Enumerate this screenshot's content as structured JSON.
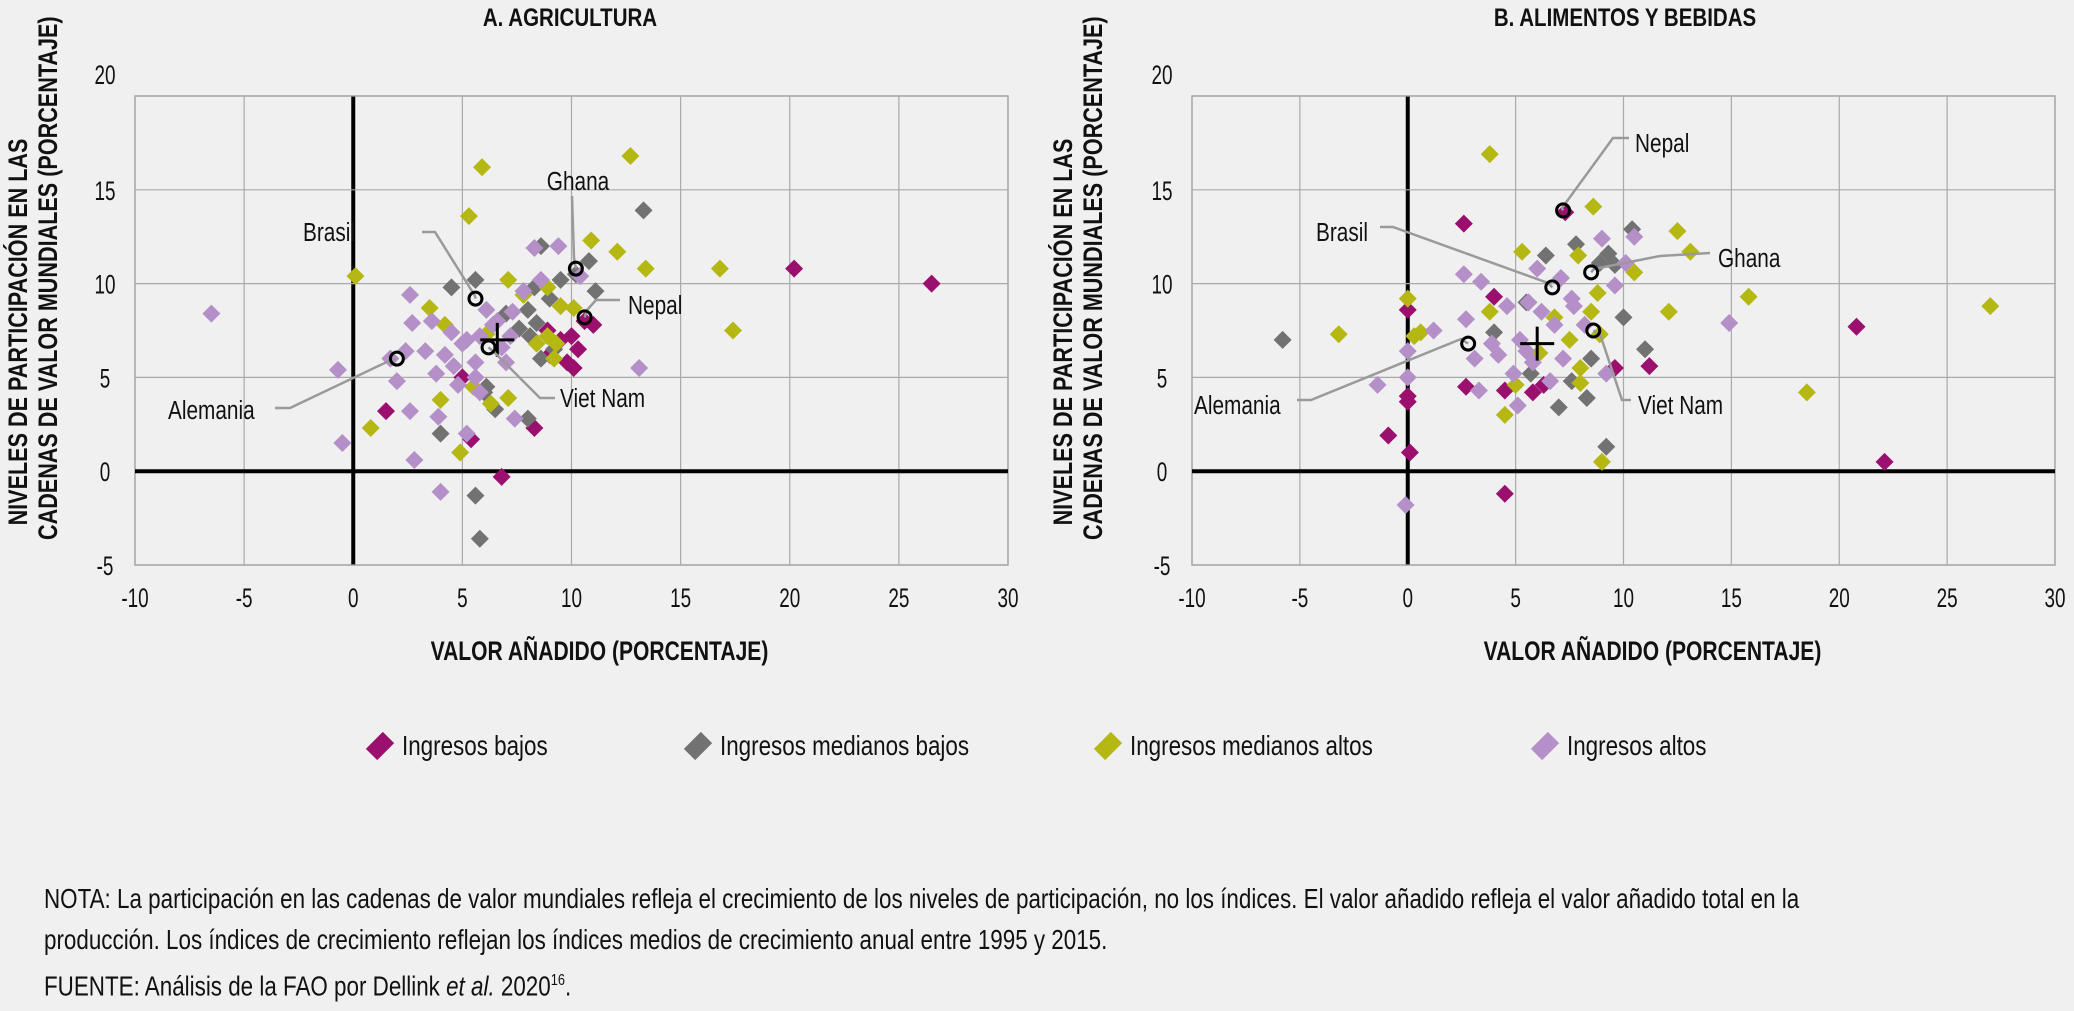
{
  "colors": {
    "ingresos_bajos": "#9b0f6f",
    "ingresos_medianos_bajos": "#727272",
    "ingresos_medianos_altos": "#b5b712",
    "ingresos_altos": "#b58fc8",
    "background": "#f0f0f0",
    "grid": "#a9a9a9",
    "leader": "#9a9a9a"
  },
  "legend": [
    {
      "key": "low",
      "label": "Ingresos bajos"
    },
    {
      "key": "lower_middle",
      "label": "Ingresos medianos bajos"
    },
    {
      "key": "upper_middle",
      "label": "Ingresos medianos altos"
    },
    {
      "key": "high",
      "label": "Ingresos altos"
    }
  ],
  "notes": {
    "line1": "NOTA: La participación en las cadenas de valor mundiales refleja el crecimiento de los niveles de participación, no los índices. El valor añadido refleja el valor añadido total en la",
    "line2": "producción. Los índices de crecimiento reflejan los índices medios de crecimiento anual entre 1995 y 2015.",
    "source_prefix": "FUENTE: Análisis de la FAO por Dellink ",
    "source_italic": "et al.",
    "source_suffix": " 2020",
    "source_sup": "16",
    "source_end": "."
  },
  "chart_data": [
    {
      "type": "scatter",
      "title": "A. AGRICULTURA",
      "xlabel": "VALOR AÑADIDO (PORCENTAJE)",
      "ylabel_line1": "NIVELES DE PARTICIPACIÓN EN LAS",
      "ylabel_line2": "CADENAS DE VALOR MUNDIALES (PORCENTAJE)",
      "xlim": [
        -10,
        30
      ],
      "ylim": [
        -5,
        20
      ],
      "xticks": [
        "-10",
        "-5",
        "0",
        "5",
        "10",
        "15",
        "20",
        "25",
        "30"
      ],
      "yticks": [
        "20",
        "15",
        "10",
        "5",
        "0",
        "-5"
      ],
      "grid": true,
      "mean_marker": [
        6.6,
        7.0
      ],
      "highlighted": [
        {
          "name": "Brasil",
          "x": 5.6,
          "y": 9.2
        },
        {
          "name": "Ghana",
          "x": 10.2,
          "y": 10.8
        },
        {
          "name": "Nepal",
          "x": 10.6,
          "y": 8.2
        },
        {
          "name": "Viet Nam",
          "x": 6.2,
          "y": 6.6
        },
        {
          "name": "Alemania",
          "x": 2.0,
          "y": 6.0
        }
      ],
      "series": [
        {
          "name": "Ingresos bajos",
          "key": "low",
          "points": [
            [
              20.2,
              10.8
            ],
            [
              26.5,
              10.0
            ],
            [
              10.6,
              8.0
            ],
            [
              11.0,
              7.8
            ],
            [
              10.0,
              7.2
            ],
            [
              10.3,
              6.5
            ],
            [
              9.8,
              5.8
            ],
            [
              10.1,
              5.5
            ],
            [
              8.9,
              7.5
            ],
            [
              9.5,
              7.0
            ],
            [
              1.5,
              3.2
            ],
            [
              8.3,
              2.3
            ],
            [
              5.4,
              1.7
            ],
            [
              6.8,
              -0.3
            ],
            [
              5.0,
              5.0
            ],
            [
              9.0,
              6.2
            ]
          ]
        },
        {
          "name": "Ingresos medianos bajos",
          "key": "lower_middle",
          "points": [
            [
              13.3,
              13.9
            ],
            [
              10.8,
              11.2
            ],
            [
              8.6,
              12.0
            ],
            [
              10.2,
              10.5
            ],
            [
              5.6,
              10.2
            ],
            [
              4.5,
              9.8
            ],
            [
              11.1,
              9.6
            ],
            [
              8.3,
              9.8
            ],
            [
              8.0,
              8.6
            ],
            [
              8.4,
              7.9
            ],
            [
              8.1,
              7.2
            ],
            [
              7.6,
              7.6
            ],
            [
              9.2,
              6.5
            ],
            [
              8.6,
              6.0
            ],
            [
              6.0,
              4.2
            ],
            [
              6.5,
              3.3
            ],
            [
              6.1,
              4.5
            ],
            [
              4.0,
              2.0
            ],
            [
              8.0,
              2.8
            ],
            [
              5.6,
              -1.3
            ],
            [
              5.8,
              -3.6
            ],
            [
              9.0,
              9.2
            ],
            [
              7.0,
              8.4
            ],
            [
              9.5,
              10.2
            ]
          ]
        },
        {
          "name": "Ingresos medianos altos",
          "key": "upper_middle",
          "points": [
            [
              12.7,
              16.8
            ],
            [
              5.9,
              16.2
            ],
            [
              5.3,
              13.6
            ],
            [
              10.9,
              12.3
            ],
            [
              12.1,
              11.7
            ],
            [
              13.4,
              10.8
            ],
            [
              16.8,
              10.8
            ],
            [
              17.4,
              7.5
            ],
            [
              0.1,
              10.4
            ],
            [
              7.1,
              10.2
            ],
            [
              8.9,
              9.8
            ],
            [
              9.5,
              8.8
            ],
            [
              3.5,
              8.7
            ],
            [
              4.2,
              7.8
            ],
            [
              6.1,
              7.3
            ],
            [
              8.4,
              6.8
            ],
            [
              9.2,
              6.0
            ],
            [
              5.5,
              4.5
            ],
            [
              6.3,
              3.6
            ],
            [
              7.1,
              3.9
            ],
            [
              4.9,
              1.0
            ],
            [
              0.8,
              2.3
            ],
            [
              8.9,
              7.2
            ],
            [
              10.1,
              8.7
            ],
            [
              9.3,
              6.8
            ],
            [
              4.0,
              3.8
            ],
            [
              7.8,
              9.4
            ]
          ]
        },
        {
          "name": "Ingresos altos",
          "key": "high",
          "points": [
            [
              -6.5,
              8.4
            ],
            [
              -0.7,
              5.4
            ],
            [
              -0.5,
              1.5
            ],
            [
              13.1,
              5.5
            ],
            [
              2.6,
              9.4
            ],
            [
              2.7,
              7.9
            ],
            [
              3.6,
              8.0
            ],
            [
              1.7,
              6.0
            ],
            [
              2.0,
              4.8
            ],
            [
              2.6,
              3.2
            ],
            [
              2.8,
              0.6
            ],
            [
              3.9,
              2.9
            ],
            [
              4.0,
              -1.1
            ],
            [
              5.2,
              2.0
            ],
            [
              7.4,
              2.8
            ],
            [
              4.8,
              4.6
            ],
            [
              5.6,
              5.0
            ],
            [
              4.2,
              6.2
            ],
            [
              5.0,
              6.8
            ],
            [
              5.8,
              7.2
            ],
            [
              6.4,
              7.8
            ],
            [
              4.5,
              7.4
            ],
            [
              6.8,
              6.6
            ],
            [
              5.6,
              5.8
            ],
            [
              7.3,
              8.5
            ],
            [
              7.8,
              9.6
            ],
            [
              8.3,
              11.9
            ],
            [
              9.4,
              12.0
            ],
            [
              10.4,
              10.4
            ],
            [
              6.1,
              8.6
            ],
            [
              3.3,
              6.4
            ],
            [
              4.6,
              5.6
            ],
            [
              5.8,
              4.2
            ],
            [
              7.0,
              5.8
            ],
            [
              3.8,
              5.2
            ],
            [
              8.6,
              10.2
            ],
            [
              6.6,
              8.0
            ],
            [
              2.4,
              6.4
            ],
            [
              7.2,
              7.2
            ],
            [
              5.2,
              7.0
            ]
          ]
        }
      ]
    },
    {
      "type": "scatter",
      "title": "B. ALIMENTOS Y BEBIDAS",
      "xlabel": "VALOR AÑADIDO (PORCENTAJE)",
      "ylabel_line1": "NIVELES DE PARTICIPACIÓN EN LAS",
      "ylabel_line2": "CADENAS DE VALOR MUNDIALES (PORCENTAJE)",
      "xlim": [
        -10,
        30
      ],
      "ylim": [
        -5,
        20
      ],
      "xticks": [
        "-10",
        "-5",
        "0",
        "5",
        "10",
        "15",
        "20",
        "25",
        "30"
      ],
      "yticks": [
        "20",
        "15",
        "10",
        "5",
        "0",
        "-5"
      ],
      "grid": true,
      "mean_marker": [
        6.0,
        6.8
      ],
      "highlighted": [
        {
          "name": "Nepal",
          "x": 7.2,
          "y": 13.9
        },
        {
          "name": "Brasil",
          "x": 6.7,
          "y": 9.8
        },
        {
          "name": "Ghana",
          "x": 8.5,
          "y": 10.6
        },
        {
          "name": "Viet Nam",
          "x": 8.6,
          "y": 7.5
        },
        {
          "name": "Alemania",
          "x": 2.8,
          "y": 6.8
        }
      ],
      "series": [
        {
          "name": "Ingresos bajos",
          "key": "low",
          "points": [
            [
              2.6,
              13.2
            ],
            [
              7.3,
              13.8
            ],
            [
              20.8,
              7.7
            ],
            [
              22.1,
              0.5
            ],
            [
              11.2,
              5.6
            ],
            [
              0.0,
              8.6
            ],
            [
              0.0,
              4.0
            ],
            [
              0.0,
              3.7
            ],
            [
              -0.9,
              1.9
            ],
            [
              0.1,
              1.0
            ],
            [
              4.5,
              -1.2
            ],
            [
              4.5,
              4.3
            ],
            [
              6.3,
              4.6
            ],
            [
              2.7,
              4.5
            ],
            [
              9.6,
              5.5
            ],
            [
              4.0,
              9.3
            ],
            [
              5.8,
              4.2
            ]
          ]
        },
        {
          "name": "Ingresos medianos bajos",
          "key": "lower_middle",
          "points": [
            [
              -5.8,
              7.0
            ],
            [
              10.4,
              12.9
            ],
            [
              7.8,
              12.1
            ],
            [
              6.4,
              11.5
            ],
            [
              9.3,
              11.6
            ],
            [
              10.0,
              8.2
            ],
            [
              11.0,
              6.5
            ],
            [
              8.5,
              6.0
            ],
            [
              8.3,
              3.9
            ],
            [
              7.0,
              3.4
            ],
            [
              9.2,
              1.3
            ],
            [
              7.6,
              4.8
            ],
            [
              5.5,
              9.0
            ],
            [
              8.9,
              11.1
            ],
            [
              4.0,
              7.4
            ],
            [
              5.7,
              5.2
            ],
            [
              9.6,
              11.0
            ]
          ]
        },
        {
          "name": "Ingresos medianos altos",
          "key": "upper_middle",
          "points": [
            [
              3.8,
              16.9
            ],
            [
              8.6,
              14.1
            ],
            [
              12.5,
              12.8
            ],
            [
              13.1,
              11.7
            ],
            [
              15.8,
              9.3
            ],
            [
              27.0,
              8.8
            ],
            [
              18.5,
              4.2
            ],
            [
              12.1,
              8.5
            ],
            [
              0.0,
              9.2
            ],
            [
              -3.2,
              7.3
            ],
            [
              0.3,
              7.2
            ],
            [
              0.6,
              7.4
            ],
            [
              5.3,
              11.7
            ],
            [
              7.9,
              11.5
            ],
            [
              10.5,
              10.6
            ],
            [
              8.8,
              9.5
            ],
            [
              8.5,
              8.5
            ],
            [
              4.5,
              3.0
            ],
            [
              5.0,
              4.6
            ],
            [
              8.0,
              4.7
            ],
            [
              9.0,
              0.5
            ],
            [
              8.9,
              7.3
            ],
            [
              6.1,
              6.3
            ],
            [
              7.5,
              7.0
            ],
            [
              3.8,
              8.5
            ],
            [
              8.0,
              5.5
            ],
            [
              6.8,
              8.2
            ]
          ]
        },
        {
          "name": "Ingresos altos",
          "key": "high",
          "points": [
            [
              14.9,
              7.9
            ],
            [
              -1.4,
              4.6
            ],
            [
              1.2,
              7.5
            ],
            [
              0.0,
              6.4
            ],
            [
              0.0,
              5.0
            ],
            [
              -0.1,
              -1.8
            ],
            [
              2.6,
              10.5
            ],
            [
              3.4,
              10.1
            ],
            [
              2.7,
              8.1
            ],
            [
              3.1,
              6.0
            ],
            [
              3.3,
              4.3
            ],
            [
              5.1,
              3.5
            ],
            [
              9.6,
              9.9
            ],
            [
              10.1,
              11.1
            ],
            [
              10.5,
              12.5
            ],
            [
              9.0,
              12.4
            ],
            [
              6.0,
              10.8
            ],
            [
              5.6,
              9.0
            ],
            [
              7.1,
              10.3
            ],
            [
              7.6,
              9.2
            ],
            [
              4.6,
              8.8
            ],
            [
              6.8,
              7.8
            ],
            [
              5.2,
              7.0
            ],
            [
              4.2,
              6.2
            ],
            [
              5.8,
              5.8
            ],
            [
              7.2,
              6.0
            ],
            [
              4.9,
              5.2
            ],
            [
              8.2,
              7.8
            ],
            [
              9.2,
              5.2
            ],
            [
              6.6,
              4.8
            ],
            [
              3.9,
              6.8
            ],
            [
              5.5,
              6.4
            ],
            [
              6.2,
              8.5
            ],
            [
              7.7,
              8.8
            ]
          ]
        }
      ]
    }
  ]
}
